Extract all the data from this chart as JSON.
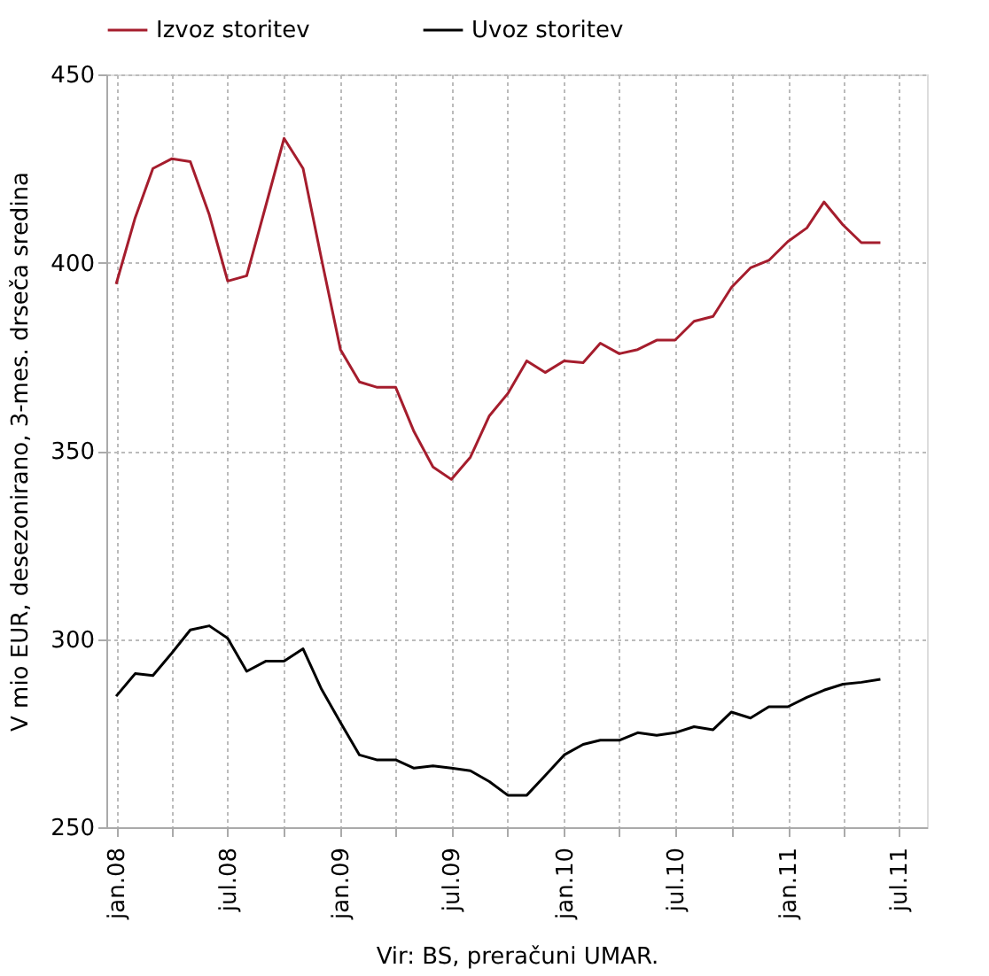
{
  "chart_data": {
    "type": "line",
    "x": [
      "2008-01",
      "2008-02",
      "2008-03",
      "2008-04",
      "2008-05",
      "2008-06",
      "2008-07",
      "2008-08",
      "2008-09",
      "2008-10",
      "2008-11",
      "2008-12",
      "2009-01",
      "2009-02",
      "2009-03",
      "2009-04",
      "2009-05",
      "2009-06",
      "2009-07",
      "2009-08",
      "2009-09",
      "2009-10",
      "2009-11",
      "2009-12",
      "2010-01",
      "2010-02",
      "2010-03",
      "2010-04",
      "2010-05",
      "2010-06",
      "2010-07",
      "2010-08",
      "2010-09",
      "2010-10",
      "2010-11",
      "2010-12",
      "2011-01",
      "2011-02",
      "2011-03",
      "2011-04",
      "2011-05",
      "2011-06"
    ],
    "series": [
      {
        "name": "Izvoz storitev",
        "color": "#a51d2d",
        "values": [
          394.3,
          411.9,
          425,
          427.6,
          426.8,
          412.7,
          395.1,
          396.5,
          415,
          433,
          425,
          401,
          376.9,
          368.3,
          366.9,
          366.9,
          355.1,
          345.7,
          342.4,
          348.3,
          359.3,
          365.2,
          373.9,
          370.8,
          373.9,
          373.4,
          378.6,
          375.8,
          376.9,
          379.4,
          379.4,
          384.4,
          385.7,
          393.4,
          398.6,
          400.6,
          405.6,
          409.2,
          416.1,
          410,
          405.3,
          405.3
        ]
      },
      {
        "name": "Uvoz storitev",
        "color": "#000000",
        "values": [
          284.8,
          290.8,
          290.3,
          296.3,
          302.4,
          303.5,
          300.2,
          291.4,
          294.1,
          294.1,
          297.4,
          286.7,
          277.8,
          269.2,
          267.9,
          267.9,
          265.7,
          266.3,
          265.7,
          265,
          262.1,
          258.5,
          258.5,
          263.7,
          269.2,
          272,
          273.1,
          273.1,
          275.1,
          274.4,
          275.1,
          276.7,
          275.9,
          280.6,
          279,
          282,
          282,
          284.5,
          286.4,
          288,
          288.5,
          289.3
        ]
      }
    ],
    "ylabel": "V mio EUR, desezonirano, 3-mes. drseča sredina",
    "annotations": [
      "Vir: BS, preračuni UMAR."
    ],
    "xlim": [
      "2007-12-16",
      "2011-08-16"
    ],
    "xticks": [
      {
        "value": "2008-01",
        "label": "jan.08"
      },
      {
        "value": "2008-04",
        "label": null
      },
      {
        "value": "2008-07",
        "label": "jul.08"
      },
      {
        "value": "2008-10",
        "label": null
      },
      {
        "value": "2009-01",
        "label": "jan.09"
      },
      {
        "value": "2009-04",
        "label": null
      },
      {
        "value": "2009-07",
        "label": "jul.09"
      },
      {
        "value": "2009-10",
        "label": null
      },
      {
        "value": "2010-01",
        "label": "jan.10"
      },
      {
        "value": "2010-04",
        "label": null
      },
      {
        "value": "2010-07",
        "label": "jul.10"
      },
      {
        "value": "2010-10",
        "label": null
      },
      {
        "value": "2011-01",
        "label": "jan.11"
      },
      {
        "value": "2011-04",
        "label": null
      },
      {
        "value": "2011-07",
        "label": "jul.11"
      }
    ],
    "ylim": [
      250,
      450
    ],
    "yticks": [
      250,
      300,
      350,
      400,
      450
    ],
    "grid": true,
    "legend": "top",
    "marker": "none",
    "line_style": "solid"
  }
}
